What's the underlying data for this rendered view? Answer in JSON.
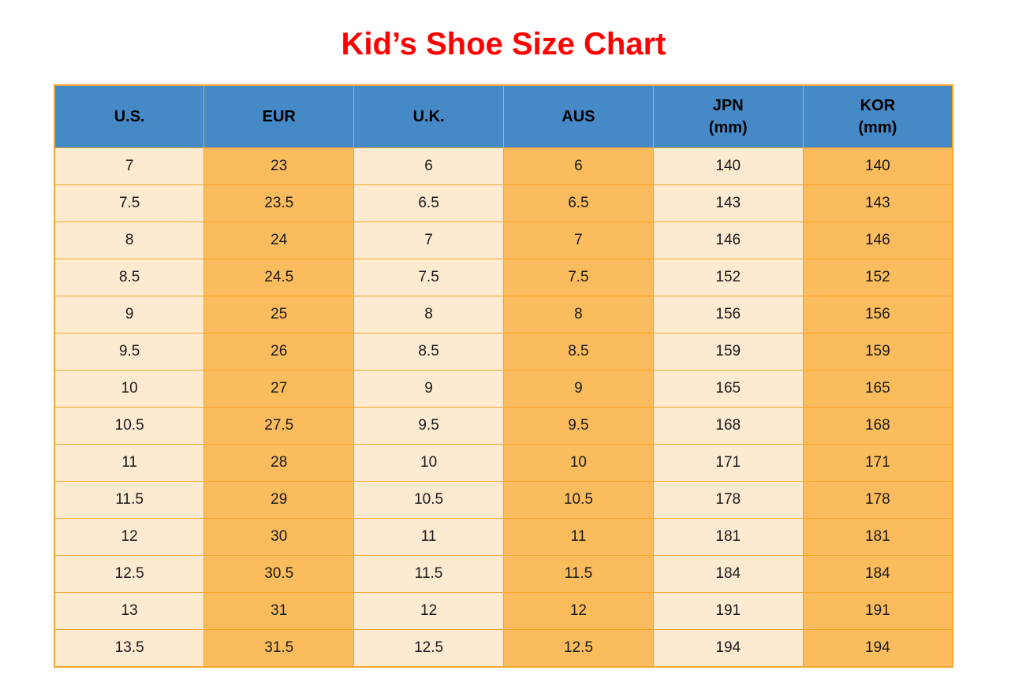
{
  "page": {
    "title": "Kid’s Shoe Size Chart",
    "title_color": "#FF0000",
    "background": "#FFFFFF"
  },
  "colors": {
    "header_bg": "#4589C7",
    "header_text": "#000000",
    "column_light_bg": "#FDEAD0",
    "column_orange_bg": "#FBBC5D",
    "grid_border": "#F5A62B",
    "cell_text": "#1A1A1A"
  },
  "chart_data": {
    "type": "table",
    "title": "Kid’s Shoe Size Chart",
    "columns": [
      {
        "id": "us",
        "label": "U.S.",
        "sublabel": ""
      },
      {
        "id": "eur",
        "label": "EUR",
        "sublabel": ""
      },
      {
        "id": "uk",
        "label": "U.K.",
        "sublabel": ""
      },
      {
        "id": "aus",
        "label": "AUS",
        "sublabel": ""
      },
      {
        "id": "jpn",
        "label": "JPN",
        "sublabel": "(mm)"
      },
      {
        "id": "kor",
        "label": "KOR",
        "sublabel": "(mm)"
      }
    ],
    "rows": [
      [
        "7",
        "23",
        "6",
        "6",
        "140",
        "140"
      ],
      [
        "7.5",
        "23.5",
        "6.5",
        "6.5",
        "143",
        "143"
      ],
      [
        "8",
        "24",
        "7",
        "7",
        "146",
        "146"
      ],
      [
        "8.5",
        "24.5",
        "7.5",
        "7.5",
        "152",
        "152"
      ],
      [
        "9",
        "25",
        "8",
        "8",
        "156",
        "156"
      ],
      [
        "9.5",
        "26",
        "8.5",
        "8.5",
        "159",
        "159"
      ],
      [
        "10",
        "27",
        "9",
        "9",
        "165",
        "165"
      ],
      [
        "10.5",
        "27.5",
        "9.5",
        "9.5",
        "168",
        "168"
      ],
      [
        "11",
        "28",
        "10",
        "10",
        "171",
        "171"
      ],
      [
        "11.5",
        "29",
        "10.5",
        "10.5",
        "178",
        "178"
      ],
      [
        "12",
        "30",
        "11",
        "11",
        "181",
        "181"
      ],
      [
        "12.5",
        "30.5",
        "11.5",
        "11.5",
        "184",
        "184"
      ],
      [
        "13",
        "31",
        "12",
        "12",
        "191",
        "191"
      ],
      [
        "13.5",
        "31.5",
        "12.5",
        "12.5",
        "194",
        "194"
      ]
    ]
  }
}
